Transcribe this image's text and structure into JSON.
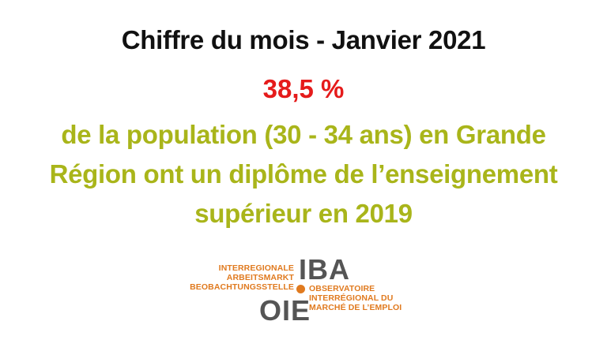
{
  "title": "Chiffre du mois - Janvier 2021",
  "figure": "38,5 %",
  "description_lines": [
    "de la population (30 - 34 ans) en Grande",
    "Région ont un diplôme de l’enseignement",
    "supérieur en 2019"
  ],
  "logo": {
    "iba": "IBA",
    "oie": "OIE",
    "de_lines": [
      "INTERREGIONALE",
      "ARBEITSMARKT",
      "BEOBACHTUNGSSTELLE"
    ],
    "fr_lines": [
      "OBSERVATOIRE",
      "INTERRÉGIONAL DU",
      "MARCHÉ DE L’EMPLOI"
    ]
  },
  "colors": {
    "title": "#111111",
    "figure": "#e51b1b",
    "description": "#a9b51a",
    "logo_accent": "#e07a1f",
    "logo_letters": "#555555"
  }
}
